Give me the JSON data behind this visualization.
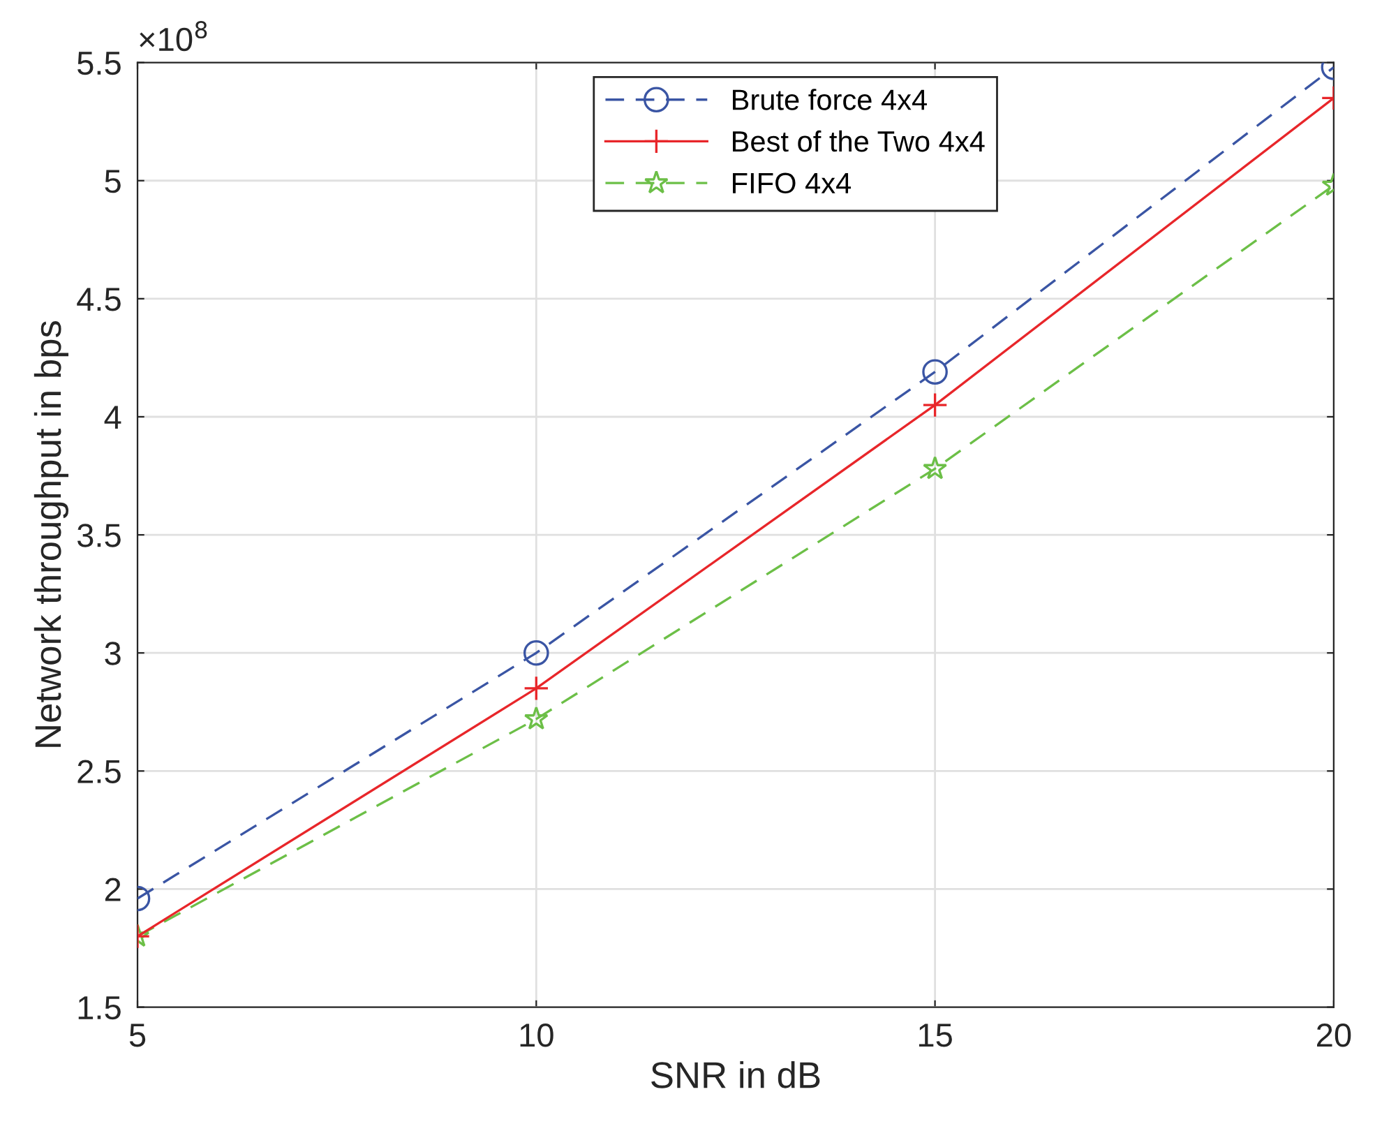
{
  "chart_data": {
    "type": "line",
    "xlabel": "SNR in dB",
    "ylabel": "Network throughput in bps",
    "x": [
      5,
      10,
      15,
      20
    ],
    "series": [
      {
        "name": "Brute force 4x4",
        "color": "#3a55a4",
        "values": [
          1.96,
          3.0,
          4.19,
          5.48
        ],
        "marker": "circle",
        "line_style": "dashed"
      },
      {
        "name": "Best of the Two 4x4",
        "color": "#e8262a",
        "values": [
          1.8,
          2.85,
          4.05,
          5.35
        ],
        "marker": "cross",
        "line_style": "solid"
      },
      {
        "name": "FIFO 4x4",
        "color": "#6cbf47",
        "values": [
          1.8,
          2.72,
          3.78,
          4.98
        ],
        "marker": "star",
        "line_style": "dashed"
      }
    ],
    "xlim": [
      5,
      20
    ],
    "xticks": [
      5,
      10,
      15,
      20
    ],
    "ylim": [
      1.5,
      5.5
    ],
    "yticks": [
      1.5,
      2,
      2.5,
      3,
      3.5,
      4,
      4.5,
      5,
      5.5
    ],
    "annotations": [
      "×10$^{8}$"
    ],
    "grid": true,
    "legend": "top"
  }
}
